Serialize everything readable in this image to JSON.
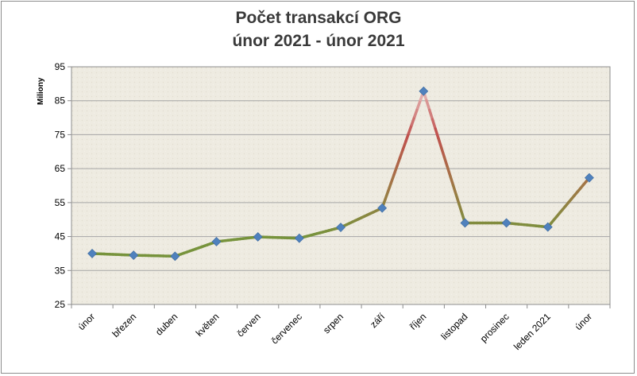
{
  "chart_data": {
    "type": "line",
    "title": "Počet transakcí ORG",
    "subtitle": "únor 2021 - únor 2021",
    "ylabel": "Miliony",
    "xlabel": "",
    "ylim": [
      25,
      95
    ],
    "yticks": [
      25,
      35,
      45,
      55,
      65,
      75,
      85,
      95
    ],
    "grid": true,
    "categories": [
      "únor",
      "březen",
      "duben",
      "květen",
      "červen",
      "červenec",
      "srpen",
      "září",
      "říjen",
      "listopad",
      "prosinec",
      "leden 2021",
      "únor"
    ],
    "values": [
      40.0,
      39.5,
      39.2,
      43.5,
      44.9,
      44.5,
      47.7,
      53.4,
      87.8,
      49.0,
      49.0,
      47.8,
      62.3
    ],
    "colors": {
      "marker": "#4f81bd",
      "line_low": "#77933c",
      "line_high": "#c0504d",
      "line_peak": "#e6b9b8",
      "plot_bg": "#eeebe1",
      "grid": "#a6a6a6"
    }
  }
}
